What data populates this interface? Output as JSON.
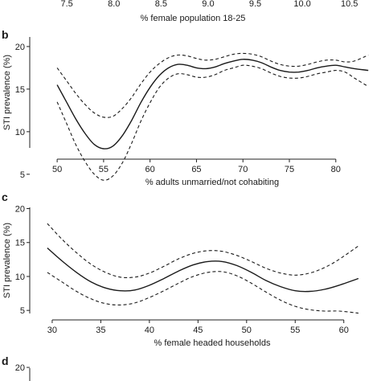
{
  "chart_data": [
    {
      "panel": "",
      "type": "line",
      "xlabel": "% female population 18-25",
      "xticks": [
        7.5,
        8.0,
        8.5,
        9.0,
        9.5,
        10.0,
        10.5
      ],
      "xtick_labels": [
        "7.5",
        "8.0",
        "8.5",
        "9.0",
        "9.5",
        "10.0",
        "10.5"
      ],
      "xlim": [
        7.2,
        10.75
      ]
    },
    {
      "panel": "b",
      "type": "line",
      "xlabel": "% adults unmarried/not cohabiting",
      "ylabel": "STI prevalence (%)",
      "xticks": [
        50,
        55,
        60,
        65,
        70,
        75,
        80
      ],
      "yticks": [
        5,
        10,
        15,
        20
      ],
      "xlim": [
        48,
        84
      ],
      "ylim": [
        3,
        21.5
      ],
      "series": [
        {
          "role": "fit",
          "x": [
            50,
            51,
            52,
            53,
            54,
            55,
            56,
            57,
            58,
            59,
            60,
            61,
            62,
            63,
            64,
            65,
            66,
            67,
            68,
            69,
            70,
            71,
            72,
            73,
            74,
            75,
            76,
            77,
            78,
            79,
            80,
            81,
            82,
            83.5
          ],
          "values": [
            15.5,
            13.5,
            11.5,
            9.8,
            8.5,
            8.0,
            8.3,
            9.5,
            11.3,
            13.4,
            15.2,
            16.6,
            17.5,
            17.9,
            17.8,
            17.5,
            17.4,
            17.6,
            18.0,
            18.3,
            18.5,
            18.4,
            18.1,
            17.6,
            17.2,
            17.0,
            17.0,
            17.2,
            17.5,
            17.7,
            17.8,
            17.6,
            17.4,
            17.2
          ]
        },
        {
          "role": "upper",
          "x": [
            50,
            51,
            52,
            53,
            54,
            55,
            56,
            57,
            58,
            59,
            60,
            61,
            62,
            63,
            64,
            65,
            66,
            67,
            68,
            69,
            70,
            71,
            72,
            73,
            74,
            75,
            76,
            77,
            78,
            79,
            80,
            81,
            82,
            83.5
          ],
          "values": [
            17.5,
            16.0,
            14.5,
            13.2,
            12.2,
            11.7,
            11.8,
            12.7,
            14.0,
            15.6,
            17.0,
            18.0,
            18.7,
            19.0,
            18.9,
            18.6,
            18.4,
            18.5,
            18.8,
            19.1,
            19.2,
            19.1,
            18.8,
            18.3,
            17.9,
            17.7,
            17.7,
            17.9,
            18.2,
            18.4,
            18.4,
            18.2,
            18.3,
            19.0
          ]
        },
        {
          "role": "lower",
          "x": [
            50,
            51,
            52,
            53,
            54,
            55,
            56,
            57,
            58,
            59,
            60,
            61,
            62,
            63,
            64,
            65,
            66,
            67,
            68,
            69,
            70,
            71,
            72,
            73,
            74,
            75,
            76,
            77,
            78,
            79,
            80,
            81,
            82,
            83.5
          ],
          "values": [
            13.5,
            11.0,
            8.5,
            6.5,
            5.0,
            4.3,
            4.8,
            6.3,
            8.6,
            11.2,
            13.4,
            15.2,
            16.3,
            16.8,
            16.7,
            16.4,
            16.4,
            16.7,
            17.2,
            17.5,
            17.8,
            17.7,
            17.4,
            16.9,
            16.5,
            16.3,
            16.3,
            16.5,
            16.8,
            17.0,
            17.2,
            17.0,
            16.3,
            15.3
          ]
        }
      ]
    },
    {
      "panel": "c",
      "type": "line",
      "xlabel": "% female headed households",
      "ylabel": "STI prevalence (%)",
      "xticks": [
        30,
        35,
        40,
        45,
        50,
        55,
        60
      ],
      "yticks": [
        5,
        10,
        15,
        20
      ],
      "xlim": [
        28.6,
        63
      ],
      "ylim": [
        3.6,
        21.6
      ],
      "series": [
        {
          "role": "fit",
          "x": [
            29.5,
            31,
            32.5,
            34,
            35.5,
            37,
            38.5,
            40,
            41.5,
            43,
            44.5,
            46,
            47.5,
            49,
            50.5,
            52,
            53.5,
            55,
            56.5,
            58,
            59.5,
            61.5
          ],
          "values": [
            14.2,
            12.3,
            10.6,
            9.2,
            8.3,
            7.9,
            8.0,
            8.7,
            9.7,
            10.8,
            11.7,
            12.2,
            12.2,
            11.6,
            10.6,
            9.4,
            8.5,
            7.9,
            7.8,
            8.1,
            8.7,
            9.7
          ]
        },
        {
          "role": "upper",
          "x": [
            29.5,
            31,
            32.5,
            34,
            35.5,
            37,
            38.5,
            40,
            41.5,
            43,
            44.5,
            46,
            47.5,
            49,
            50.5,
            52,
            53.5,
            55,
            56.5,
            58,
            59.5,
            61.5
          ],
          "values": [
            17.8,
            15.5,
            13.5,
            11.8,
            10.6,
            9.9,
            9.9,
            10.5,
            11.5,
            12.6,
            13.4,
            13.8,
            13.7,
            13.1,
            12.2,
            11.2,
            10.5,
            10.2,
            10.5,
            11.3,
            12.5,
            14.5
          ]
        },
        {
          "role": "lower",
          "x": [
            29.5,
            31,
            32.5,
            34,
            35.5,
            37,
            38.5,
            40,
            41.5,
            43,
            44.5,
            46,
            47.5,
            49,
            50.5,
            52,
            53.5,
            55,
            56.5,
            58,
            59.5,
            61.5
          ],
          "values": [
            10.6,
            9.2,
            7.8,
            6.7,
            6.0,
            5.8,
            6.1,
            6.9,
            7.9,
            9.0,
            10.0,
            10.6,
            10.7,
            10.1,
            9.0,
            7.7,
            6.5,
            5.6,
            5.1,
            4.9,
            4.9,
            4.6
          ]
        }
      ]
    },
    {
      "panel": "d",
      "type": "line",
      "yticks": [
        20
      ],
      "ylim": [
        15,
        21.5
      ]
    }
  ]
}
